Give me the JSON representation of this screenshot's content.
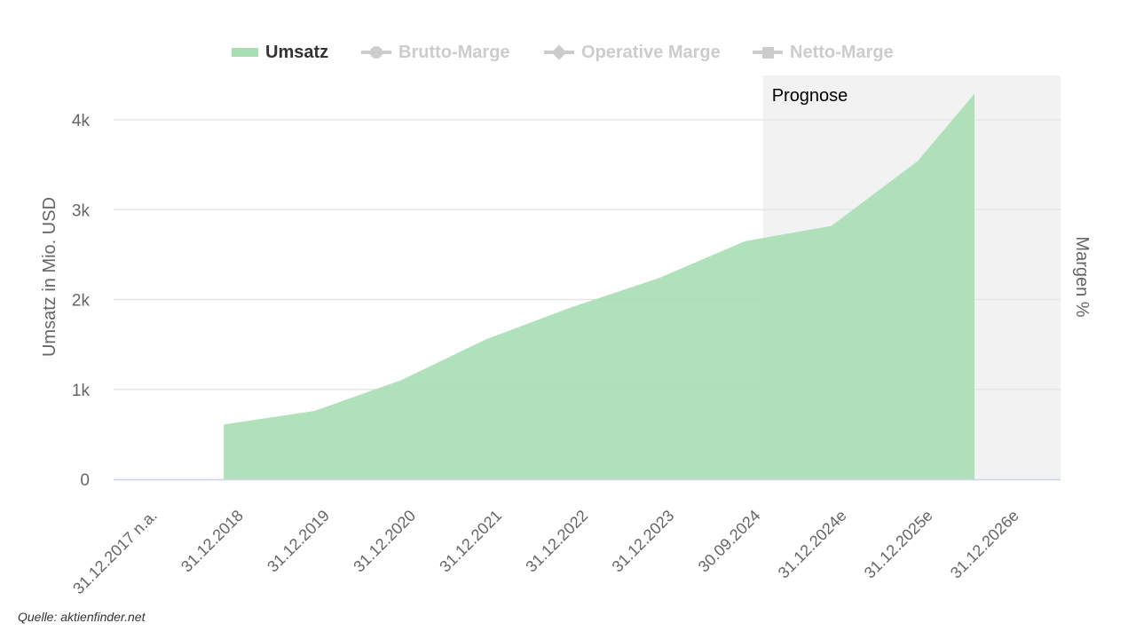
{
  "legend": [
    {
      "label": "Umsatz",
      "active": true,
      "marker": "area-swatch"
    },
    {
      "label": "Brutto-Marge",
      "active": false,
      "marker": "circle-icon"
    },
    {
      "label": "Operative Marge",
      "active": false,
      "marker": "diamond-icon"
    },
    {
      "label": "Netto-Marge",
      "active": false,
      "marker": "square-icon"
    }
  ],
  "source": "Quelle: aktienfinder.net",
  "colors": {
    "area": "#a8deb4",
    "grid": "#e6e6e6",
    "axis": "#ccd6eb",
    "forecast_band": "#f2f2f2",
    "text": "#666666",
    "inactive": "#cccccc"
  },
  "chart_data": {
    "type": "area",
    "title": "",
    "ylabel": "Umsatz in Mio. USD",
    "y2label": "Margen %",
    "ylim": [
      0,
      4300
    ],
    "yticks": [
      0,
      1000,
      2000,
      3000,
      4000
    ],
    "ytick_labels": [
      "0",
      "1k",
      "2k",
      "3k",
      "4k"
    ],
    "categories": [
      "31.12.2017 n.a.",
      "31.12.2018",
      "31.12.2019",
      "31.12.2020",
      "31.12.2021",
      "31.12.2022",
      "31.12.2023",
      "30.09.2024",
      "31.12.2024e",
      "31.12.2025e",
      "31.12.2026e"
    ],
    "series": [
      {
        "name": "Umsatz",
        "values": [
          null,
          610,
          760,
          1100,
          1560,
          1920,
          2240,
          2650,
          2820,
          3540,
          4290
        ]
      }
    ],
    "forecast_band": {
      "label": "Prognose",
      "from_index": 7,
      "to_index": 10
    },
    "grid": true,
    "legend_position": "top-center"
  }
}
